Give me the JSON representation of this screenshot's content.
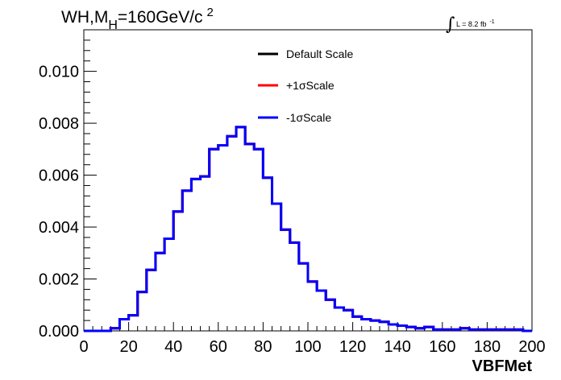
{
  "title": {
    "main": "WH,M",
    "subscript": "H",
    "value": "=160GeV/c",
    "superscript": "2"
  },
  "luminosity": {
    "symbol": "∫",
    "text": "L = 8.2 fb",
    "superscript": "-1"
  },
  "colors": {
    "default": "#000000",
    "plus": "#ff0000",
    "minus": "#0000ff"
  },
  "chart_data": {
    "type": "line",
    "style": "step-histogram",
    "xlabel": "VBFMet",
    "ylabel": "",
    "xlim": [
      0,
      200
    ],
    "ylim": [
      0,
      0.0116
    ],
    "grid": false,
    "legend_position": "top-center",
    "x_ticks": [
      "0",
      "20",
      "40",
      "60",
      "80",
      "100",
      "120",
      "140",
      "160",
      "180",
      "200"
    ],
    "y_ticks": [
      "0.000",
      "0.002",
      "0.004",
      "0.006",
      "0.008",
      "0.010"
    ],
    "bin_edges": [
      0,
      4,
      8,
      12,
      16,
      20,
      24,
      28,
      32,
      36,
      40,
      44,
      48,
      52,
      56,
      60,
      64,
      68,
      72,
      76,
      80,
      84,
      88,
      92,
      96,
      100,
      104,
      108,
      112,
      116,
      120,
      124,
      128,
      132,
      136,
      140,
      144,
      148,
      152,
      156,
      160,
      164,
      168,
      172,
      176,
      180,
      184,
      188,
      192,
      196,
      200
    ],
    "series": [
      {
        "name": "Default Scale",
        "color": "#000000",
        "values": [
          0,
          0,
          0,
          0.0001,
          0.00045,
          0.0006,
          0.0015,
          0.00235,
          0.003,
          0.00355,
          0.0046,
          0.0054,
          0.00585,
          0.00595,
          0.007,
          0.00715,
          0.0075,
          0.00785,
          0.0072,
          0.007,
          0.0059,
          0.0049,
          0.0039,
          0.0034,
          0.0026,
          0.0019,
          0.00155,
          0.0012,
          0.0009,
          0.0008,
          0.00055,
          0.00045,
          0.0004,
          0.00035,
          0.00025,
          0.0002,
          0.00015,
          0.0001,
          0.00015,
          5e-05,
          5e-05,
          5e-05,
          0.0001,
          5e-05,
          5e-05,
          5e-05,
          5e-05,
          5e-05,
          5e-05,
          0
        ]
      },
      {
        "name": "+1σScale",
        "color": "#ff0000",
        "values": [
          0,
          0,
          0,
          0.0001,
          0.00045,
          0.0006,
          0.0015,
          0.00235,
          0.003,
          0.00355,
          0.0046,
          0.0054,
          0.00585,
          0.00595,
          0.007,
          0.00715,
          0.0075,
          0.00785,
          0.0072,
          0.007,
          0.0059,
          0.0049,
          0.0039,
          0.0034,
          0.0026,
          0.0019,
          0.00155,
          0.0012,
          0.0009,
          0.0008,
          0.00055,
          0.00045,
          0.0004,
          0.00035,
          0.00025,
          0.0002,
          0.00015,
          0.0001,
          0.00015,
          5e-05,
          5e-05,
          5e-05,
          0.0001,
          5e-05,
          5e-05,
          5e-05,
          5e-05,
          5e-05,
          5e-05,
          0
        ]
      },
      {
        "name": "-1σScale",
        "color": "#0000ff",
        "values": [
          0,
          0,
          0,
          0.0001,
          0.00045,
          0.0006,
          0.0015,
          0.00235,
          0.003,
          0.00355,
          0.0046,
          0.0054,
          0.00585,
          0.00595,
          0.007,
          0.00715,
          0.0075,
          0.00785,
          0.0072,
          0.007,
          0.0059,
          0.0049,
          0.0039,
          0.0034,
          0.0026,
          0.0019,
          0.00155,
          0.0012,
          0.0009,
          0.0008,
          0.00055,
          0.00045,
          0.0004,
          0.00035,
          0.00025,
          0.0002,
          0.00015,
          0.0001,
          0.00015,
          5e-05,
          5e-05,
          5e-05,
          0.0001,
          5e-05,
          5e-05,
          5e-05,
          5e-05,
          5e-05,
          5e-05,
          0
        ]
      }
    ]
  }
}
